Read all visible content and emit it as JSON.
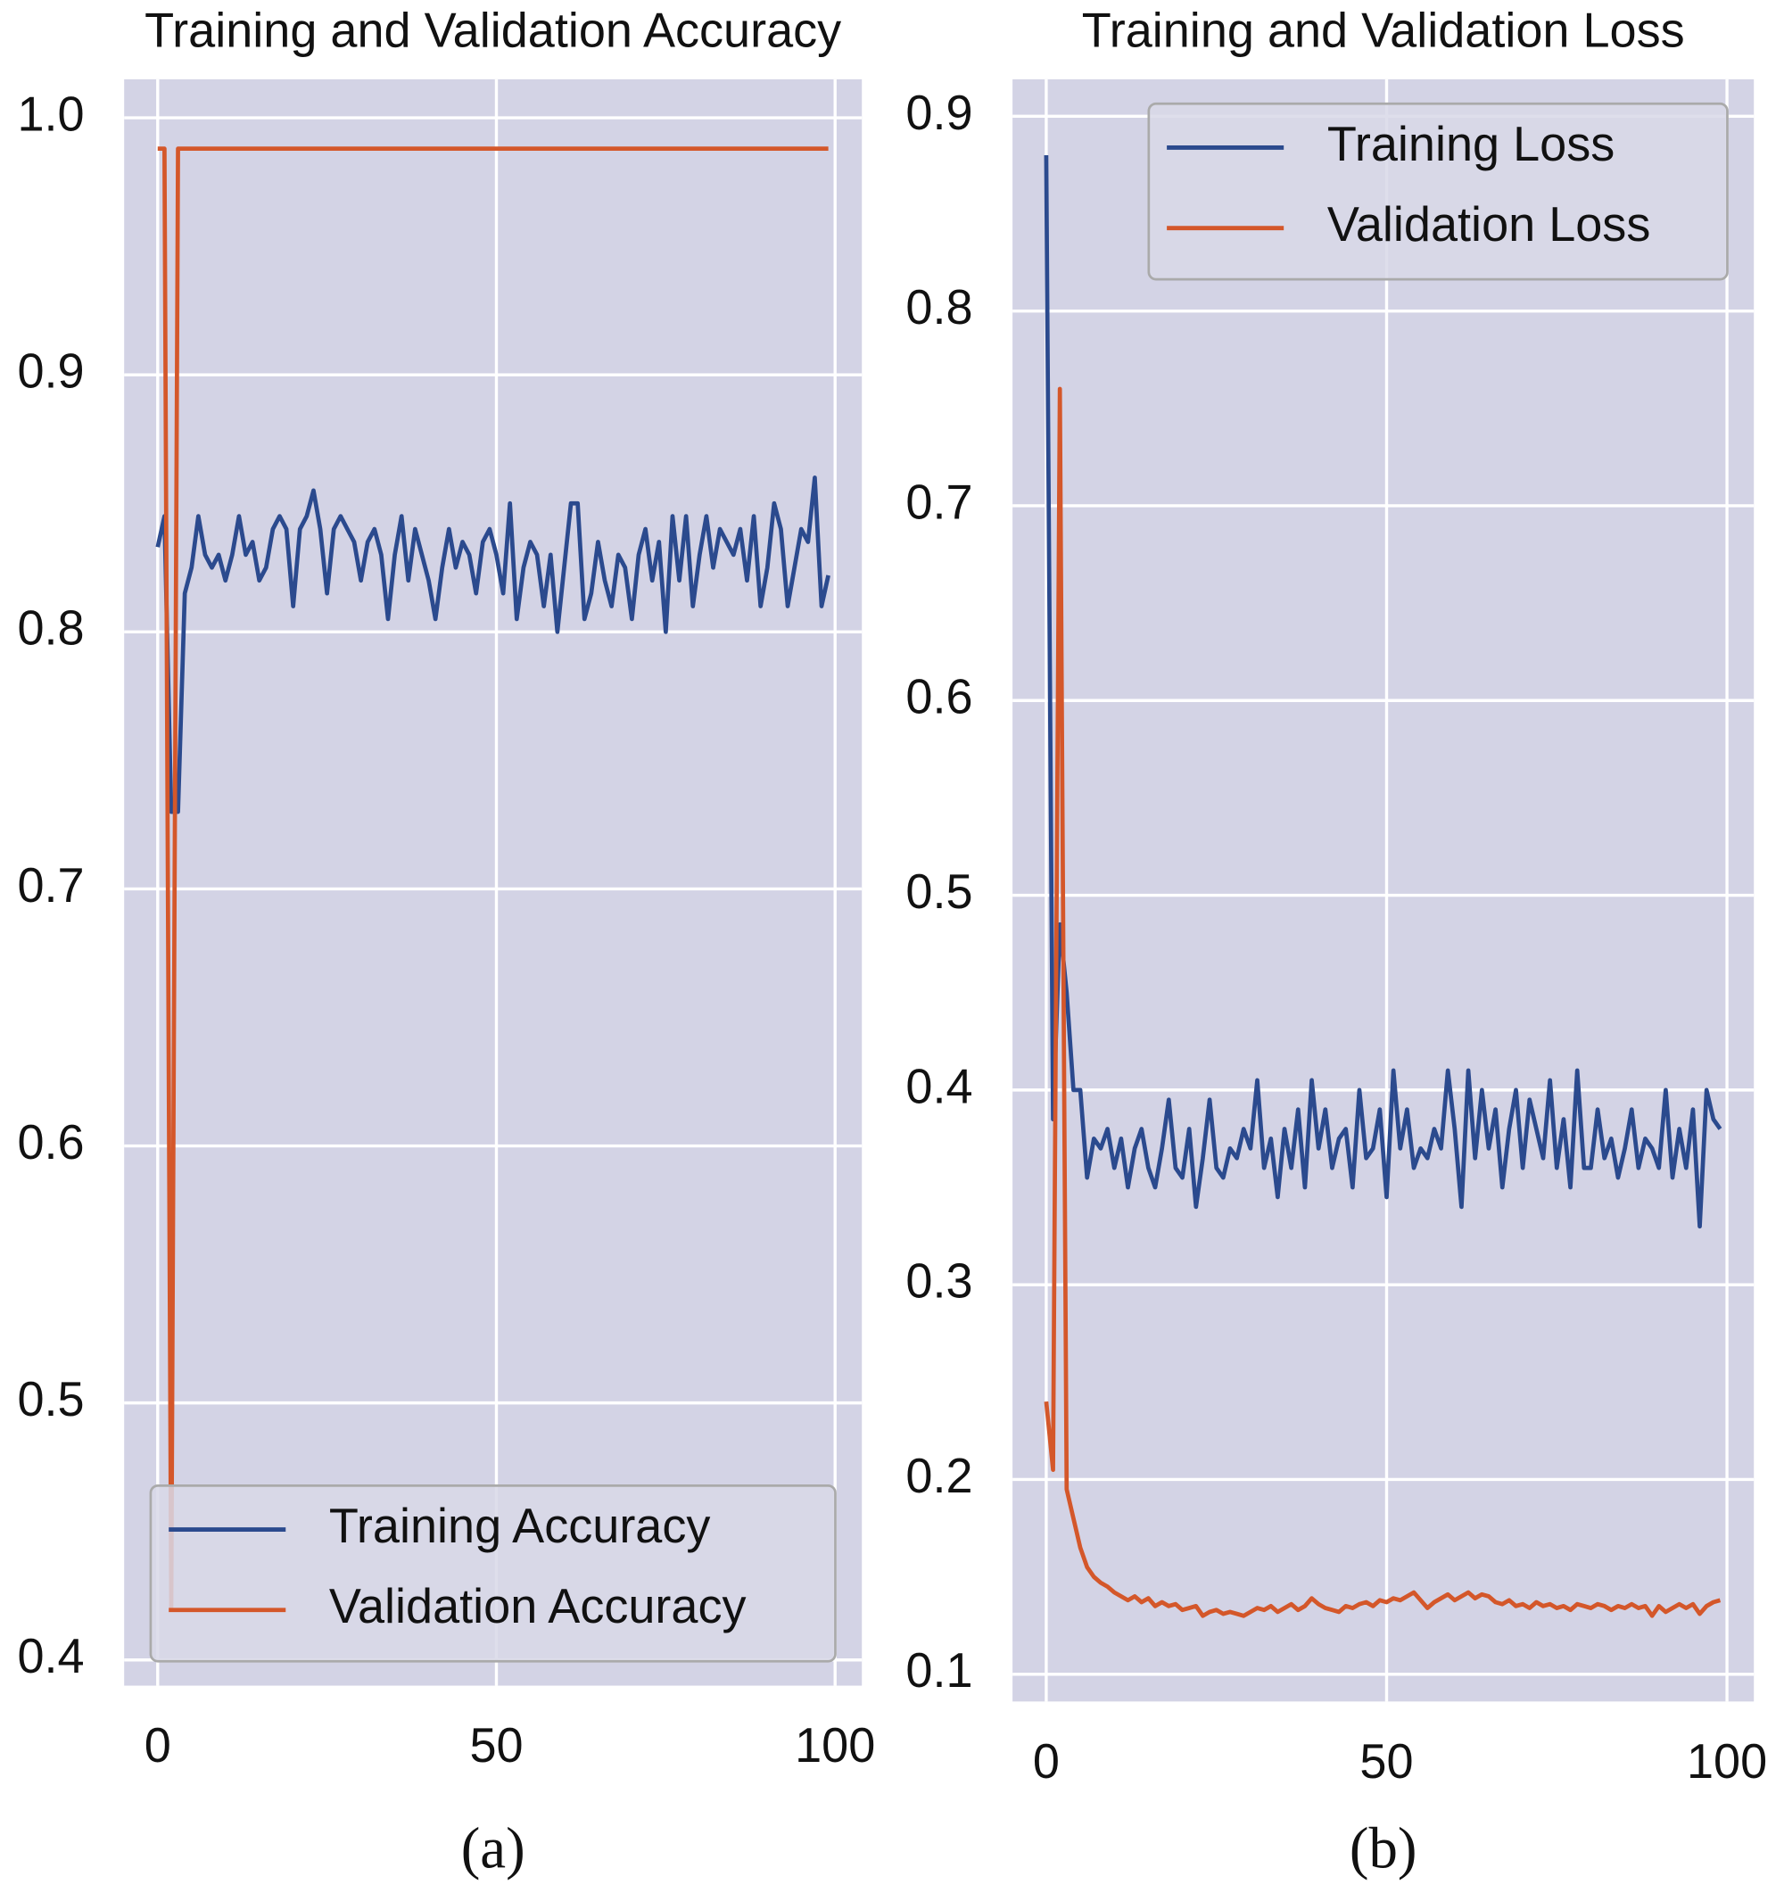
{
  "chart_data": [
    {
      "type": "line",
      "title": "Training and Validation Accuracy",
      "x": [
        0,
        1,
        2,
        3,
        4,
        5,
        6,
        7,
        8,
        9,
        10,
        11,
        12,
        13,
        14,
        15,
        16,
        17,
        18,
        19,
        20,
        21,
        22,
        23,
        24,
        25,
        26,
        27,
        28,
        29,
        30,
        31,
        32,
        33,
        34,
        35,
        36,
        37,
        38,
        39,
        40,
        41,
        42,
        43,
        44,
        45,
        46,
        47,
        48,
        49,
        50,
        51,
        52,
        53,
        54,
        55,
        56,
        57,
        58,
        59,
        60,
        61,
        62,
        63,
        64,
        65,
        66,
        67,
        68,
        69,
        70,
        71,
        72,
        73,
        74,
        75,
        76,
        77,
        78,
        79,
        80,
        81,
        82,
        83,
        84,
        85,
        86,
        87,
        88,
        89,
        90,
        91,
        92,
        93,
        94,
        95,
        96,
        97,
        98,
        99
      ],
      "series": [
        {
          "name": "Training Accuracy",
          "color": "#2b4a8e",
          "values": [
            0.833,
            0.845,
            0.73,
            0.73,
            0.815,
            0.825,
            0.845,
            0.83,
            0.825,
            0.83,
            0.82,
            0.83,
            0.845,
            0.83,
            0.835,
            0.82,
            0.825,
            0.84,
            0.845,
            0.84,
            0.81,
            0.84,
            0.845,
            0.855,
            0.84,
            0.815,
            0.84,
            0.845,
            0.84,
            0.835,
            0.82,
            0.835,
            0.84,
            0.83,
            0.805,
            0.83,
            0.845,
            0.82,
            0.84,
            0.83,
            0.82,
            0.805,
            0.825,
            0.84,
            0.825,
            0.835,
            0.83,
            0.815,
            0.835,
            0.84,
            0.83,
            0.815,
            0.85,
            0.805,
            0.825,
            0.835,
            0.83,
            0.81,
            0.83,
            0.8,
            0.825,
            0.85,
            0.85,
            0.805,
            0.815,
            0.835,
            0.82,
            0.81,
            0.83,
            0.825,
            0.805,
            0.83,
            0.84,
            0.82,
            0.835,
            0.8,
            0.845,
            0.82,
            0.845,
            0.81,
            0.83,
            0.845,
            0.825,
            0.84,
            0.835,
            0.83,
            0.84,
            0.82,
            0.845,
            0.81,
            0.825,
            0.85,
            0.84,
            0.81,
            0.825,
            0.84,
            0.835,
            0.86,
            0.81,
            0.822
          ]
        },
        {
          "name": "Validation Accuracy",
          "color": "#d4572a",
          "values": [
            0.988,
            0.988,
            0.42,
            0.988,
            0.988,
            0.988,
            0.988,
            0.988,
            0.988,
            0.988,
            0.988,
            0.988,
            0.988,
            0.988,
            0.988,
            0.988,
            0.988,
            0.988,
            0.988,
            0.988,
            0.988,
            0.988,
            0.988,
            0.988,
            0.988,
            0.988,
            0.988,
            0.988,
            0.988,
            0.988,
            0.988,
            0.988,
            0.988,
            0.988,
            0.988,
            0.988,
            0.988,
            0.988,
            0.988,
            0.988,
            0.988,
            0.988,
            0.988,
            0.988,
            0.988,
            0.988,
            0.988,
            0.988,
            0.988,
            0.988,
            0.988,
            0.988,
            0.988,
            0.988,
            0.988,
            0.988,
            0.988,
            0.988,
            0.988,
            0.988,
            0.988,
            0.988,
            0.988,
            0.988,
            0.988,
            0.988,
            0.988,
            0.988,
            0.988,
            0.988,
            0.988,
            0.988,
            0.988,
            0.988,
            0.988,
            0.988,
            0.988,
            0.988,
            0.988,
            0.988,
            0.988,
            0.988,
            0.988,
            0.988,
            0.988,
            0.988,
            0.988,
            0.988,
            0.988,
            0.988,
            0.988,
            0.988,
            0.988,
            0.988,
            0.988,
            0.988,
            0.988,
            0.988,
            0.988,
            0.988
          ]
        }
      ],
      "xlim": [
        -4.95,
        103.95
      ],
      "xticks": [
        0,
        50,
        100
      ],
      "ylim": [
        0.39,
        1.015
      ],
      "yticks": [
        0.4,
        0.5,
        0.6,
        0.7,
        0.8,
        0.9,
        {
          "value": 1,
          "label": "1.0"
        }
      ],
      "grid": true,
      "legend": "lower right"
    },
    {
      "type": "line",
      "title": "Training and Validation Loss",
      "x": [
        0,
        1,
        2,
        3,
        4,
        5,
        6,
        7,
        8,
        9,
        10,
        11,
        12,
        13,
        14,
        15,
        16,
        17,
        18,
        19,
        20,
        21,
        22,
        23,
        24,
        25,
        26,
        27,
        28,
        29,
        30,
        31,
        32,
        33,
        34,
        35,
        36,
        37,
        38,
        39,
        40,
        41,
        42,
        43,
        44,
        45,
        46,
        47,
        48,
        49,
        50,
        51,
        52,
        53,
        54,
        55,
        56,
        57,
        58,
        59,
        60,
        61,
        62,
        63,
        64,
        65,
        66,
        67,
        68,
        69,
        70,
        71,
        72,
        73,
        74,
        75,
        76,
        77,
        78,
        79,
        80,
        81,
        82,
        83,
        84,
        85,
        86,
        87,
        88,
        89,
        90,
        91,
        92,
        93,
        94,
        95,
        96,
        97,
        98,
        99
      ],
      "series": [
        {
          "name": "Training Loss",
          "color": "#2b4a8e",
          "values": [
            0.88,
            0.385,
            0.485,
            0.45,
            0.4,
            0.4,
            0.355,
            0.375,
            0.37,
            0.38,
            0.36,
            0.375,
            0.35,
            0.37,
            0.38,
            0.36,
            0.35,
            0.37,
            0.395,
            0.36,
            0.355,
            0.38,
            0.34,
            0.365,
            0.395,
            0.36,
            0.355,
            0.37,
            0.365,
            0.38,
            0.37,
            0.405,
            0.36,
            0.375,
            0.345,
            0.38,
            0.36,
            0.39,
            0.35,
            0.405,
            0.37,
            0.39,
            0.36,
            0.375,
            0.38,
            0.35,
            0.4,
            0.365,
            0.37,
            0.39,
            0.345,
            0.41,
            0.37,
            0.39,
            0.36,
            0.37,
            0.365,
            0.38,
            0.37,
            0.41,
            0.38,
            0.34,
            0.41,
            0.365,
            0.4,
            0.37,
            0.39,
            0.35,
            0.38,
            0.4,
            0.36,
            0.395,
            0.38,
            0.365,
            0.405,
            0.36,
            0.385,
            0.35,
            0.41,
            0.36,
            0.36,
            0.39,
            0.365,
            0.375,
            0.355,
            0.37,
            0.39,
            0.36,
            0.375,
            0.37,
            0.36,
            0.4,
            0.355,
            0.38,
            0.36,
            0.39,
            0.33,
            0.4,
            0.385,
            0.38
          ]
        },
        {
          "name": "Validation Loss",
          "color": "#d4572a",
          "values": [
            0.24,
            0.205,
            0.76,
            0.195,
            0.18,
            0.165,
            0.155,
            0.15,
            0.147,
            0.145,
            0.142,
            0.14,
            0.138,
            0.14,
            0.137,
            0.139,
            0.135,
            0.137,
            0.135,
            0.136,
            0.133,
            0.134,
            0.135,
            0.13,
            0.132,
            0.133,
            0.131,
            0.132,
            0.131,
            0.13,
            0.132,
            0.134,
            0.133,
            0.135,
            0.132,
            0.134,
            0.136,
            0.133,
            0.135,
            0.139,
            0.136,
            0.134,
            0.133,
            0.132,
            0.135,
            0.134,
            0.136,
            0.137,
            0.135,
            0.138,
            0.137,
            0.139,
            0.138,
            0.14,
            0.142,
            0.138,
            0.134,
            0.137,
            0.139,
            0.141,
            0.138,
            0.14,
            0.142,
            0.139,
            0.141,
            0.14,
            0.137,
            0.136,
            0.138,
            0.135,
            0.136,
            0.134,
            0.137,
            0.135,
            0.136,
            0.134,
            0.135,
            0.133,
            0.136,
            0.135,
            0.134,
            0.136,
            0.135,
            0.133,
            0.135,
            0.134,
            0.136,
            0.134,
            0.135,
            0.13,
            0.135,
            0.132,
            0.134,
            0.136,
            0.134,
            0.136,
            0.131,
            0.135,
            0.137,
            0.138
          ]
        }
      ],
      "xlim": [
        -4.95,
        103.95
      ],
      "xticks": [
        0,
        50,
        100
      ],
      "ylim": [
        0.086,
        0.919
      ],
      "yticks": [
        0.1,
        0.2,
        0.3,
        0.4,
        0.5,
        0.6,
        0.7,
        0.8,
        0.9
      ],
      "grid": true,
      "legend": "upper right"
    }
  ],
  "captions": [
    "(a)",
    "(b)"
  ]
}
